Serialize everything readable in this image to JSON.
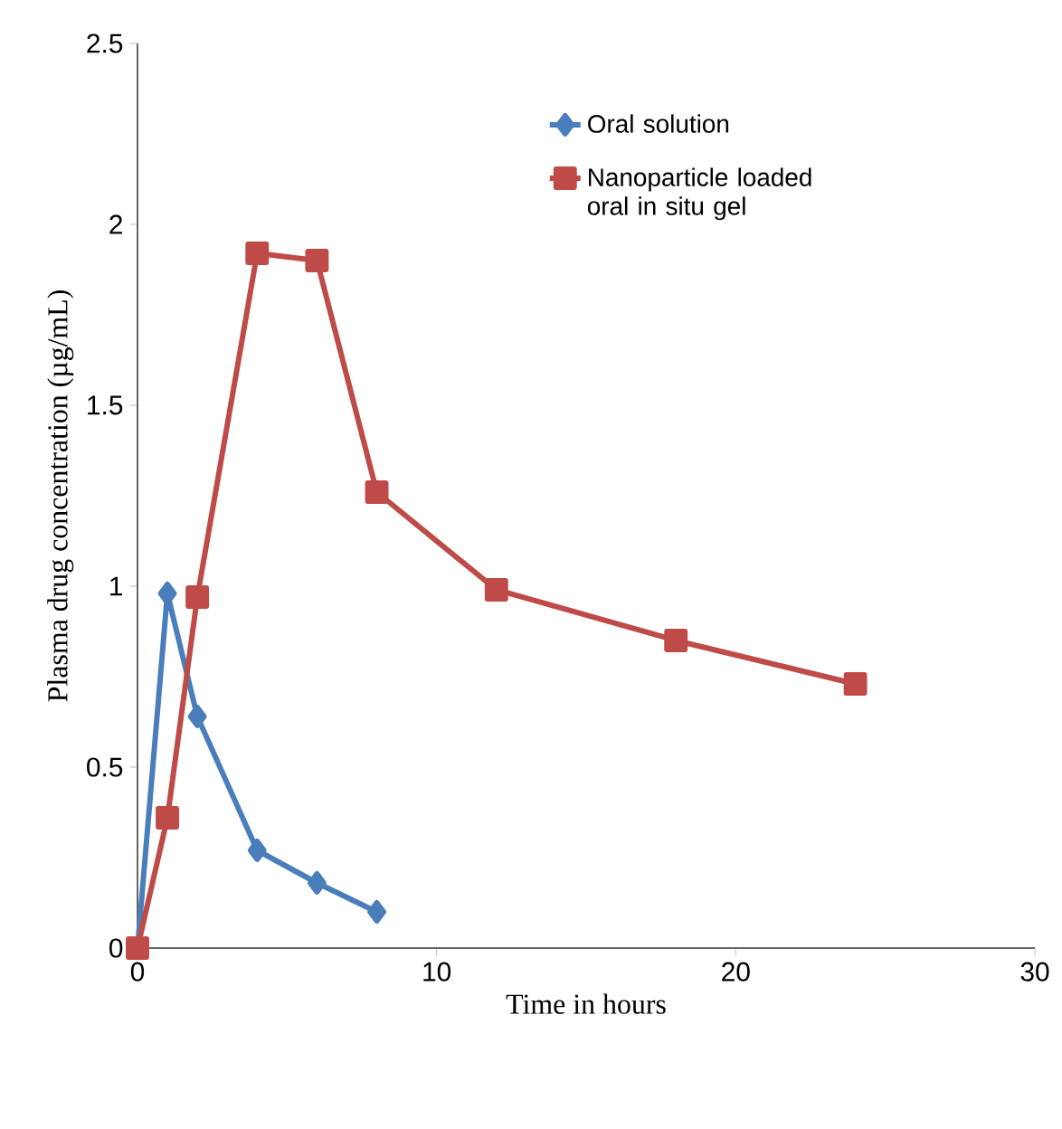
{
  "chart_data": {
    "type": "line",
    "xlabel": "Time in hours",
    "ylabel": "Plasma drug concentration (µg/mL)",
    "xlim": [
      0,
      30
    ],
    "xticks": [
      0,
      10,
      20,
      30
    ],
    "ylim": [
      0,
      2.5
    ],
    "yticks": [
      0,
      0.5,
      1,
      1.5,
      2,
      2.5
    ],
    "grid": false,
    "legend": "top right",
    "series": [
      {
        "name": "Oral solution",
        "color": "#4a7ebb",
        "marker": "diamond",
        "x": [
          0,
          1,
          2,
          4,
          6,
          8
        ],
        "values": [
          0,
          0.98,
          0.64,
          0.27,
          0.18,
          0.1
        ]
      },
      {
        "name": "Nanoparticle loaded oral in situ gel",
        "color": "#be4b48",
        "marker": "square",
        "x": [
          0,
          1,
          2,
          4,
          6,
          8,
          12,
          18,
          24
        ],
        "values": [
          0,
          0.36,
          0.97,
          1.92,
          1.9,
          1.26,
          0.99,
          0.85,
          0.73
        ]
      }
    ]
  }
}
